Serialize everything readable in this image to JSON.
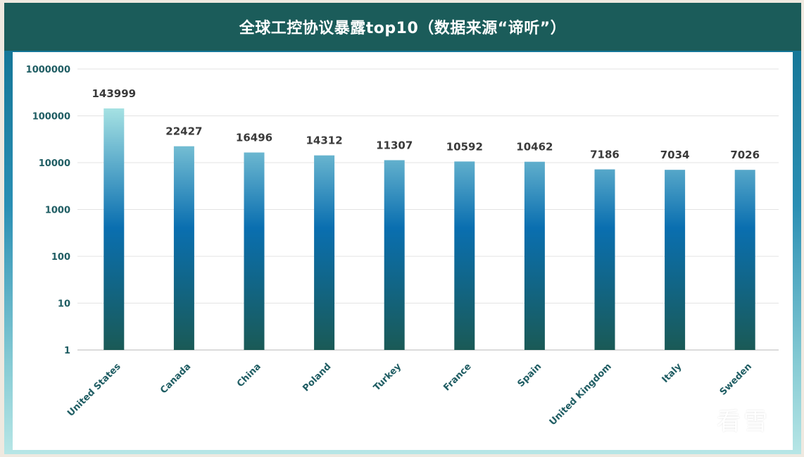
{
  "header": {
    "title": "全球工控协议暴露top10（数据来源“谛听”）"
  },
  "watermark": {
    "text": "看雪",
    "icon": "snowflake-icon"
  },
  "colors": {
    "header_bg": "#1b5c5a",
    "bar_top": "#a9e4e4",
    "bar_mid": "#0a6fb0",
    "bar_bottom": "#1a5a56",
    "axis_text": "#1f5d63"
  },
  "chart_data": {
    "type": "bar",
    "yscale": "log",
    "ylim": [
      1,
      1000000
    ],
    "yticks": [
      1,
      10,
      100,
      1000,
      10000,
      100000,
      1000000
    ],
    "grid": true,
    "categories": [
      "United States",
      "Canada",
      "China",
      "Poland",
      "Turkey",
      "France",
      "Spain",
      "United Kingdom",
      "Italy",
      "Sweden"
    ],
    "values": [
      143999,
      22427,
      16496,
      14312,
      11307,
      10592,
      10462,
      7186,
      7034,
      7026
    ]
  }
}
